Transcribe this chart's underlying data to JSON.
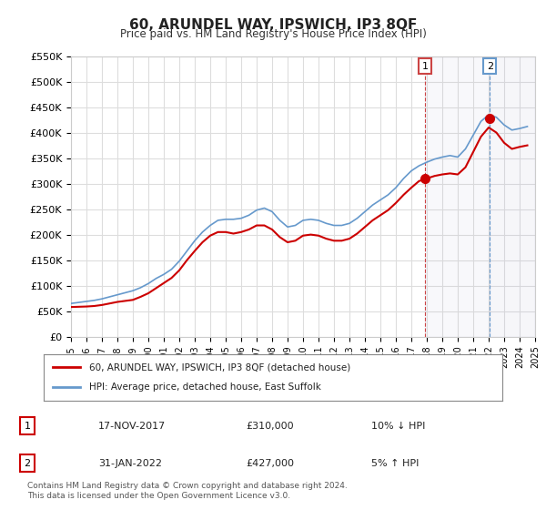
{
  "title": "60, ARUNDEL WAY, IPSWICH, IP3 8QF",
  "subtitle": "Price paid vs. HM Land Registry's House Price Index (HPI)",
  "ylabel_ticks": [
    "£0",
    "£50K",
    "£100K",
    "£150K",
    "£200K",
    "£250K",
    "£300K",
    "£350K",
    "£400K",
    "£450K",
    "£500K",
    "£550K"
  ],
  "ylim": [
    0,
    550000
  ],
  "xlim_years": [
    1995,
    2025
  ],
  "hpi_color": "#6699cc",
  "price_color": "#cc0000",
  "marker_color": "#cc0000",
  "background_color": "#ffffff",
  "grid_color": "#dddddd",
  "legend_entry1": "60, ARUNDEL WAY, IPSWICH, IP3 8QF (detached house)",
  "legend_entry2": "HPI: Average price, detached house, East Suffolk",
  "table_rows": [
    {
      "num": "1",
      "date": "17-NOV-2017",
      "price": "£310,000",
      "change": "10% ↓ HPI"
    },
    {
      "num": "2",
      "date": "31-JAN-2022",
      "price": "£427,000",
      "change": "5% ↑ HPI"
    }
  ],
  "footnote": "Contains HM Land Registry data © Crown copyright and database right 2024.\nThis data is licensed under the Open Government Licence v3.0.",
  "marker1_year": 2017.88,
  "marker1_price": 310000,
  "marker2_year": 2022.08,
  "marker2_price": 427000,
  "hpi_data_x": [
    1995,
    1995.5,
    1996,
    1996.5,
    1997,
    1997.5,
    1998,
    1998.5,
    1999,
    1999.5,
    2000,
    2000.5,
    2001,
    2001.5,
    2002,
    2002.5,
    2003,
    2003.5,
    2004,
    2004.5,
    2005,
    2005.5,
    2006,
    2006.5,
    2007,
    2007.5,
    2008,
    2008.5,
    2009,
    2009.5,
    2010,
    2010.5,
    2011,
    2011.5,
    2012,
    2012.5,
    2013,
    2013.5,
    2014,
    2014.5,
    2015,
    2015.5,
    2016,
    2016.5,
    2017,
    2017.5,
    2018,
    2018.5,
    2019,
    2019.5,
    2020,
    2020.5,
    2021,
    2021.5,
    2022,
    2022.5,
    2023,
    2023.5,
    2024,
    2024.5
  ],
  "hpi_data_y": [
    65000,
    67000,
    69000,
    71000,
    74000,
    78000,
    82000,
    86000,
    90000,
    96000,
    104000,
    114000,
    122000,
    132000,
    148000,
    168000,
    188000,
    205000,
    218000,
    228000,
    230000,
    230000,
    232000,
    238000,
    248000,
    252000,
    245000,
    228000,
    215000,
    218000,
    228000,
    230000,
    228000,
    222000,
    218000,
    218000,
    222000,
    232000,
    245000,
    258000,
    268000,
    278000,
    292000,
    310000,
    325000,
    335000,
    342000,
    348000,
    352000,
    355000,
    352000,
    368000,
    395000,
    422000,
    435000,
    430000,
    415000,
    405000,
    408000,
    412000
  ],
  "price_data_x": [
    1995,
    1995.5,
    1996,
    1996.5,
    1997,
    1997.5,
    1998,
    1998.5,
    1999,
    1999.5,
    2000,
    2000.5,
    2001,
    2001.5,
    2002,
    2002.5,
    2003,
    2003.5,
    2004,
    2004.5,
    2005,
    2005.5,
    2006,
    2006.5,
    2007,
    2007.5,
    2008,
    2008.5,
    2009,
    2009.5,
    2010,
    2010.5,
    2011,
    2011.5,
    2012,
    2012.5,
    2013,
    2013.5,
    2014,
    2014.5,
    2015,
    2015.5,
    2016,
    2016.5,
    2017,
    2017.5,
    2018,
    2018.5,
    2019,
    2019.5,
    2020,
    2020.5,
    2021,
    2021.5,
    2022,
    2022.5,
    2023,
    2023.5,
    2024,
    2024.5
  ],
  "price_data_y": [
    58000,
    58500,
    59000,
    60000,
    62000,
    65000,
    68000,
    70000,
    72000,
    78000,
    85000,
    95000,
    105000,
    115000,
    130000,
    150000,
    168000,
    185000,
    198000,
    205000,
    205000,
    202000,
    205000,
    210000,
    218000,
    218000,
    210000,
    195000,
    185000,
    188000,
    198000,
    200000,
    198000,
    192000,
    188000,
    188000,
    192000,
    202000,
    215000,
    228000,
    238000,
    248000,
    262000,
    278000,
    292000,
    305000,
    310000,
    315000,
    318000,
    320000,
    318000,
    332000,
    362000,
    392000,
    410000,
    400000,
    380000,
    368000,
    372000,
    375000
  ]
}
